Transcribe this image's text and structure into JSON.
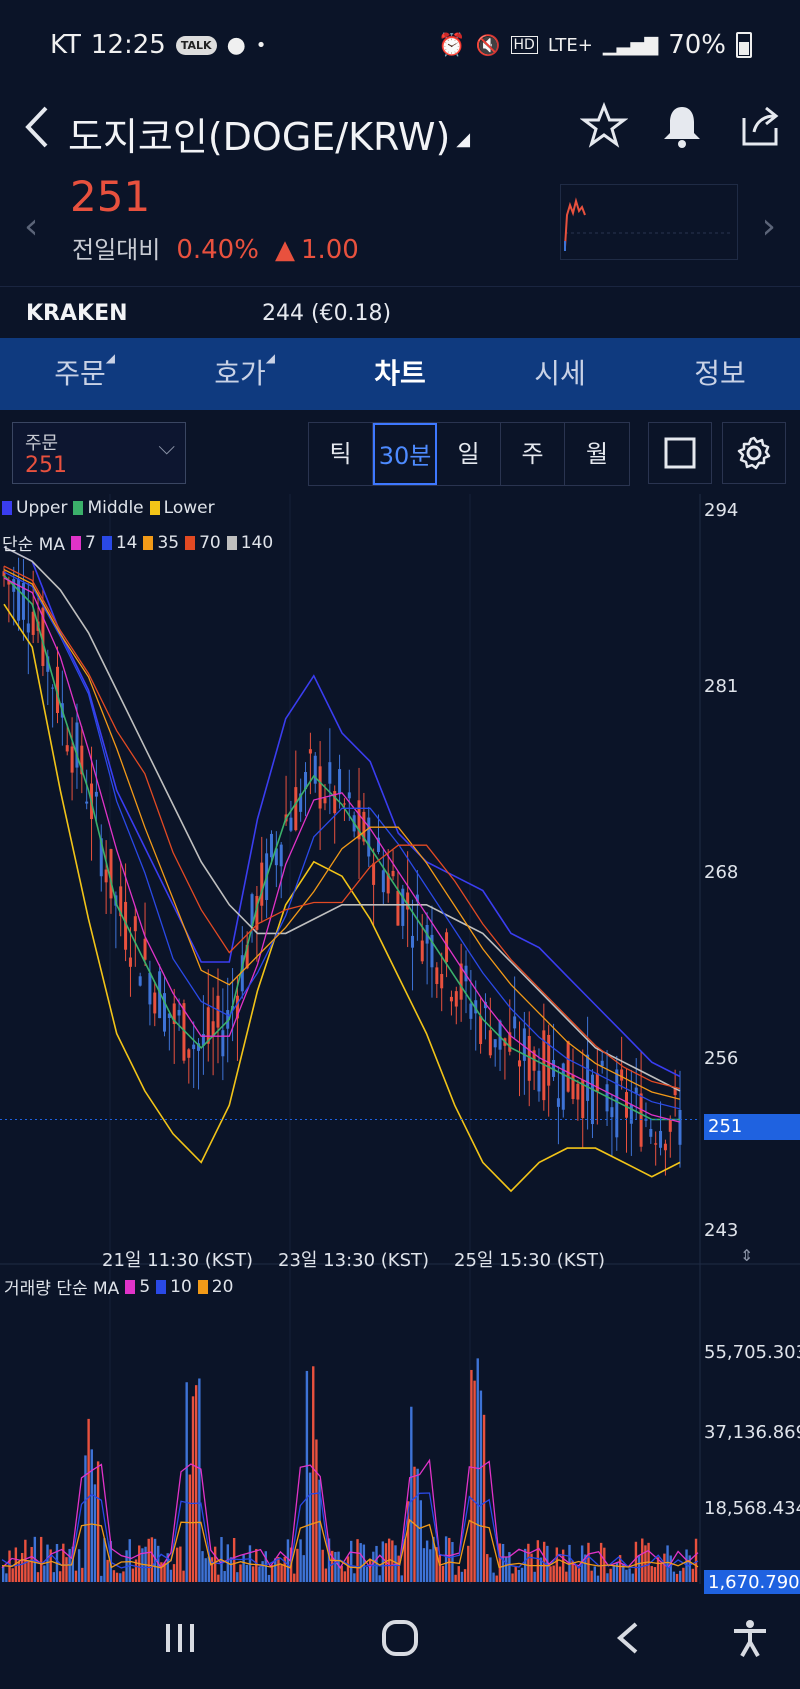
{
  "status": {
    "carrier": "KT",
    "time": "12:25",
    "talk_badge": "TALK",
    "network": "LTE+",
    "battery": "70%"
  },
  "header": {
    "title": "도지코인(DOGE/KRW)",
    "icons": [
      "back-icon",
      "star-icon",
      "bell-icon",
      "share-icon"
    ]
  },
  "price": {
    "current": "251",
    "change_label": "전일대비",
    "change_percent": "0.40%",
    "change_amount": "1.00",
    "up_color": "#e8513e"
  },
  "kraken": {
    "name": "KRAKEN",
    "price": "244 (€0.18)"
  },
  "tabs": [
    {
      "label": "주문"
    },
    {
      "label": "호가"
    },
    {
      "label": "차트"
    },
    {
      "label": "시세"
    },
    {
      "label": "정보"
    }
  ],
  "toolbar": {
    "order_label": "주문",
    "order_value": "251",
    "periods": [
      "틱",
      "30분",
      "일",
      "주",
      "월"
    ],
    "active_period": "30분"
  },
  "legend": {
    "bollinger": [
      "Upper",
      "Middle",
      "Lower"
    ],
    "ma_label": "단순 MA",
    "ma_periods": [
      "7",
      "14",
      "35",
      "70",
      "140"
    ],
    "volume_label": "거래량 단순 MA",
    "volume_periods": [
      "5",
      "10",
      "20"
    ]
  },
  "colors": {
    "upper": "#3a3df0",
    "middle": "#3bb06a",
    "lower": "#f2c418",
    "ma7": "#e033c8",
    "ma14": "#2a49e6",
    "ma35": "#f29a18",
    "ma70": "#e24a23",
    "ma140": "#bfbfbf",
    "candle_up": "#e8513e",
    "candle_down": "#3e73d6"
  },
  "chart_data": [
    {
      "type": "line",
      "y_ticks": [
        "294",
        "281",
        "268",
        "256",
        "251",
        "243"
      ],
      "x_ticks": [
        "21일 11:30 (KST)",
        "23일 13:30 (KST)",
        "25일 15:30 (KST)"
      ],
      "ylim": [
        243,
        294
      ],
      "current_price": "251",
      "series": [
        {
          "name": "Upper",
          "values": [
            291,
            290,
            285,
            281,
            274,
            270,
            266,
            262,
            262,
            272,
            279,
            282,
            278,
            276,
            271,
            269,
            268,
            267,
            264,
            263,
            261,
            259,
            257,
            255,
            254
          ]
        },
        {
          "name": "Middle",
          "values": [
            289,
            287,
            280,
            274,
            266,
            262,
            258,
            256,
            258,
            266,
            272,
            275,
            273,
            270,
            267,
            264,
            261,
            258,
            256,
            255,
            254,
            253,
            252,
            251,
            251
          ]
        },
        {
          "name": "Lower",
          "values": [
            287,
            284,
            274,
            265,
            257,
            253,
            250,
            248,
            252,
            260,
            266,
            269,
            268,
            265,
            261,
            257,
            252,
            248,
            246,
            248,
            249,
            249,
            248,
            247,
            248
          ]
        },
        {
          "name": "140",
          "values": [
            291,
            290,
            288,
            285,
            281,
            277,
            273,
            269,
            266,
            264,
            264,
            265,
            266,
            266,
            266,
            266,
            265,
            264,
            262,
            260,
            258,
            256,
            255,
            254,
            253
          ]
        }
      ]
    },
    {
      "type": "bar",
      "y_ticks": [
        "55,705.303",
        "37,136.869",
        "18,568.434",
        "1,670.790"
      ]
    }
  ]
}
